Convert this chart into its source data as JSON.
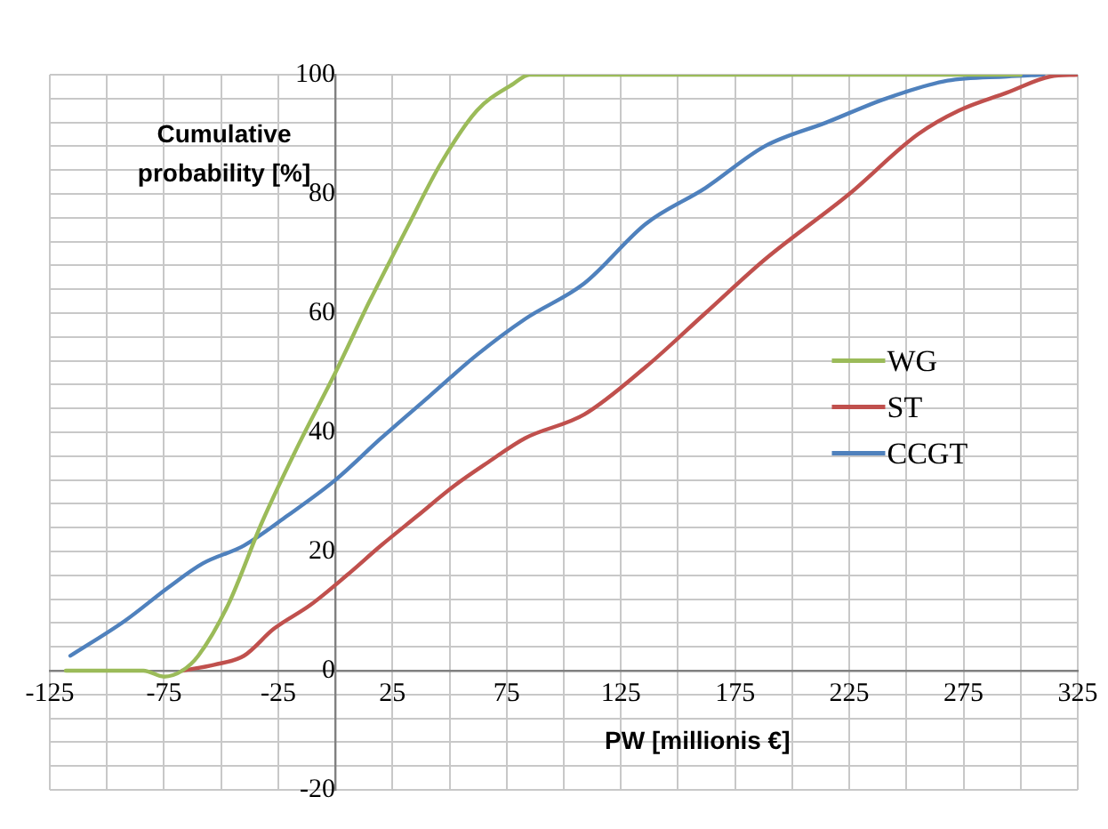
{
  "chart_data": {
    "type": "line",
    "xlabel": "PW [millionis €]",
    "ylabel": "Cumulative probability [%]",
    "xlim": [
      -125,
      325
    ],
    "ylim": [
      -20,
      100
    ],
    "xticks": [
      -125,
      {
        "value": -100,
        "label": null
      },
      -75,
      {
        "value": -50,
        "label": null
      },
      -25,
      {
        "value": 0,
        "label": null
      },
      25,
      {
        "value": 50,
        "label": null
      },
      75,
      {
        "value": 100,
        "label": null
      },
      125,
      {
        "value": 150,
        "label": null
      },
      175,
      {
        "value": 200,
        "label": null
      },
      225,
      {
        "value": 250,
        "label": null
      },
      275,
      {
        "value": 300,
        "label": null
      },
      325
    ],
    "yticks": [
      -20,
      {
        "value": -16,
        "label": null
      },
      {
        "value": -12,
        "label": null
      },
      {
        "value": -8,
        "label": null
      },
      {
        "value": -4,
        "label": null
      },
      0,
      {
        "value": 4,
        "label": null
      },
      {
        "value": 8,
        "label": null
      },
      {
        "value": 12,
        "label": null
      },
      {
        "value": 16,
        "label": null
      },
      20,
      {
        "value": 24,
        "label": null
      },
      {
        "value": 28,
        "label": null
      },
      {
        "value": 32,
        "label": null
      },
      {
        "value": 36,
        "label": null
      },
      40,
      {
        "value": 44,
        "label": null
      },
      {
        "value": 48,
        "label": null
      },
      {
        "value": 52,
        "label": null
      },
      {
        "value": 56,
        "label": null
      },
      60,
      {
        "value": 64,
        "label": null
      },
      {
        "value": 68,
        "label": null
      },
      {
        "value": 72,
        "label": null
      },
      {
        "value": 76,
        "label": null
      },
      80,
      {
        "value": 84,
        "label": null
      },
      {
        "value": 88,
        "label": null
      },
      {
        "value": 92,
        "label": null
      },
      {
        "value": 96,
        "label": null
      },
      100
    ],
    "grid": true,
    "legend": "right",
    "marker": "none",
    "line_style": "solid",
    "series": [
      {
        "name": "WG",
        "color": "#9bbb59",
        "x": [
          -118,
          -92,
          -84,
          -75,
          -67,
          -60,
          -47,
          -32,
          -16,
          0,
          15,
          31,
          46,
          62,
          78,
          85,
          150,
          225,
          300
        ],
        "values": [
          0,
          0,
          0,
          -1,
          0,
          2.5,
          11,
          25,
          38,
          50,
          62,
          74,
          85,
          94,
          98.5,
          100,
          100,
          100,
          100
        ]
      },
      {
        "name": "ST",
        "color": "#c0504d",
        "x": [
          -67,
          -53,
          -40,
          -27,
          -11,
          5,
          20,
          36,
          52,
          67,
          83,
          109,
          136,
          162,
          188,
          225,
          255,
          273,
          294,
          313,
          325
        ],
        "values": [
          0,
          1,
          2.5,
          7,
          11,
          16,
          21,
          26,
          31,
          35,
          39,
          43,
          51,
          60,
          69,
          80,
          90,
          94,
          97,
          99.7,
          100
        ]
      },
      {
        "name": "CCGT",
        "color": "#4f81bd",
        "x": [
          -116,
          -92,
          -73,
          -58,
          -40,
          -21,
          0,
          20,
          41,
          62,
          83,
          109,
          136,
          162,
          188,
          215,
          241,
          268,
          294,
          310
        ],
        "values": [
          2.5,
          8.4,
          14,
          18,
          21,
          26,
          32,
          39,
          46,
          53,
          59,
          65,
          75,
          81,
          88,
          92,
          96,
          99,
          99.7,
          100
        ]
      }
    ]
  }
}
